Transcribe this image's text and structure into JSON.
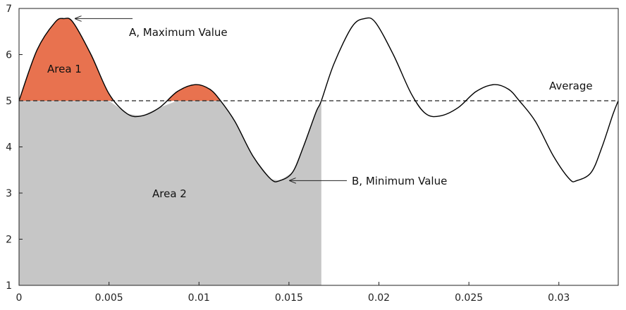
{
  "chart_data": {
    "type": "line",
    "title": "",
    "xlabel": "",
    "ylabel": "",
    "xlim": [
      0,
      0.0333
    ],
    "ylim": [
      1,
      7
    ],
    "x_ticks": [
      {
        "value": 0,
        "label": "0"
      },
      {
        "value": 0.005,
        "label": "0.005"
      },
      {
        "value": 0.01,
        "label": "0.01"
      },
      {
        "value": 0.015,
        "label": "0.015"
      },
      {
        "value": 0.02,
        "label": "0.02"
      },
      {
        "value": 0.025,
        "label": "0.025"
      },
      {
        "value": 0.03,
        "label": "0.03"
      }
    ],
    "y_ticks": [
      {
        "value": 1,
        "label": "1"
      },
      {
        "value": 2,
        "label": "2"
      },
      {
        "value": 3,
        "label": "3"
      },
      {
        "value": 4,
        "label": "4"
      },
      {
        "value": 5,
        "label": "5"
      },
      {
        "value": 6,
        "label": "6"
      },
      {
        "value": 7,
        "label": "7"
      }
    ],
    "grid": false,
    "series": [
      {
        "color": "#000000",
        "points": [
          [
            0,
            5.0
          ],
          [
            0.001,
            6.1
          ],
          [
            0.002,
            6.7
          ],
          [
            0.0025,
            6.78
          ],
          [
            0.003,
            6.7
          ],
          [
            0.004,
            6.0
          ],
          [
            0.005,
            5.15
          ],
          [
            0.006,
            4.72
          ],
          [
            0.0068,
            4.67
          ],
          [
            0.0078,
            4.85
          ],
          [
            0.0088,
            5.2
          ],
          [
            0.0098,
            5.35
          ],
          [
            0.0106,
            5.25
          ],
          [
            0.0112,
            5.0
          ],
          [
            0.012,
            4.55
          ],
          [
            0.013,
            3.8
          ],
          [
            0.014,
            3.3
          ],
          [
            0.0145,
            3.27
          ],
          [
            0.0152,
            3.45
          ],
          [
            0.0158,
            4.0
          ],
          [
            0.0165,
            4.75
          ],
          [
            0.0168,
            5.0
          ],
          [
            0.0175,
            5.8
          ],
          [
            0.0185,
            6.6
          ],
          [
            0.0192,
            6.78
          ],
          [
            0.0198,
            6.7
          ],
          [
            0.0208,
            6.0
          ],
          [
            0.0218,
            5.15
          ],
          [
            0.0226,
            4.72
          ],
          [
            0.0234,
            4.67
          ],
          [
            0.0244,
            4.85
          ],
          [
            0.0254,
            5.2
          ],
          [
            0.0264,
            5.35
          ],
          [
            0.0272,
            5.25
          ],
          [
            0.0278,
            5.0
          ],
          [
            0.0287,
            4.55
          ],
          [
            0.0297,
            3.8
          ],
          [
            0.0306,
            3.3
          ],
          [
            0.031,
            3.27
          ],
          [
            0.0318,
            3.45
          ],
          [
            0.0324,
            4.0
          ],
          [
            0.033,
            4.7
          ],
          [
            0.0333,
            5.0
          ]
        ]
      }
    ],
    "average": {
      "value": 5,
      "label": "Average",
      "style": "dashed"
    },
    "areas": [
      {
        "label": "Area 1",
        "color": "#e8724f",
        "region": "above-average",
        "x_from": 0,
        "x_to": 0.0112
      },
      {
        "label": "Area 2",
        "color": "#c6c6c6",
        "region": "below-average",
        "x_from": 0,
        "x_to": 0.0168
      }
    ],
    "annotations": [
      {
        "text": "A, Maximum Value",
        "x": 0.0025,
        "y": 6.78
      },
      {
        "text": "B, Minimum Value",
        "x": 0.0145,
        "y": 3.27
      }
    ]
  }
}
